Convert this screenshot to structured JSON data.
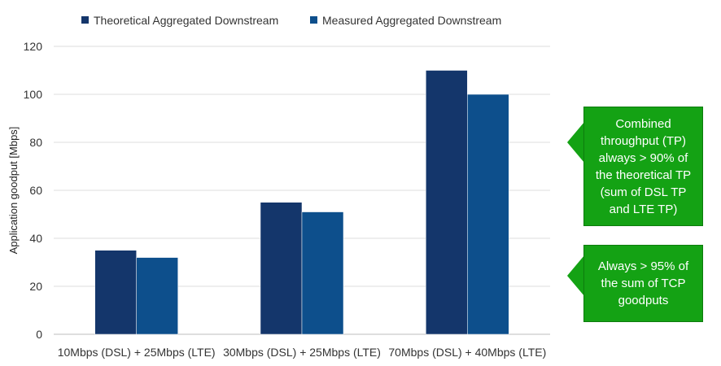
{
  "chart_data": {
    "type": "bar",
    "title": "",
    "xlabel": "",
    "ylabel": "Application goodput [Mbps]",
    "ylim": [
      0,
      120
    ],
    "yticks": [
      0,
      20,
      40,
      60,
      80,
      100,
      120
    ],
    "grid": true,
    "legend_position": "top",
    "categories": [
      "10Mbps (DSL) + 25Mbps (LTE)",
      "30Mbps (DSL) + 25Mbps (LTE)",
      "70Mbps (DSL) + 40Mbps (LTE)"
    ],
    "series": [
      {
        "name": "Theoretical Aggregated Downstream",
        "values": [
          35,
          55,
          110
        ],
        "color": "#14366b"
      },
      {
        "name": "Measured Aggregated Downstream",
        "values": [
          32,
          51,
          100
        ],
        "color": "#0d4f8c"
      }
    ]
  },
  "annotations": [
    {
      "text": "Combined throughput (TP) always > 90% of the theoretical TP (sum of DSL TP and LTE TP)",
      "color": "#14a214"
    },
    {
      "text": "Always > 95% of the sum of TCP goodputs",
      "color": "#14a214"
    }
  ]
}
